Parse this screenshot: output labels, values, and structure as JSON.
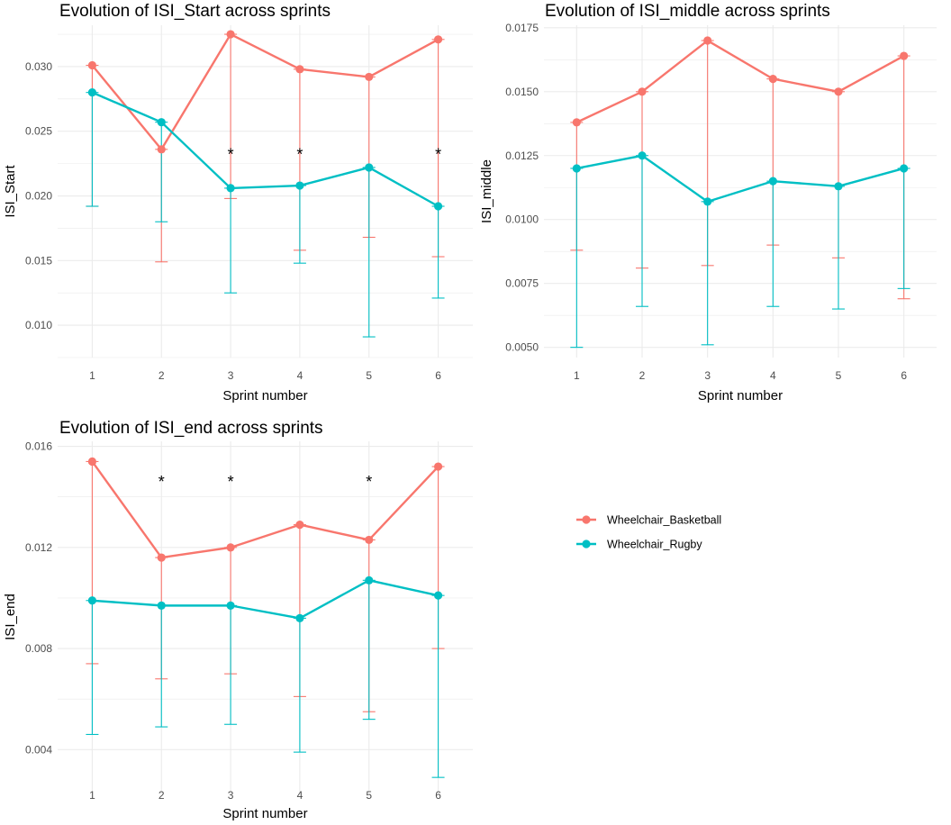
{
  "colors": {
    "basketball": "#F8766D",
    "rugby": "#00BFC4",
    "grid": "#ebebeb"
  },
  "legend": {
    "items": [
      {
        "label": "Wheelchair_Basketball",
        "color": "#F8766D"
      },
      {
        "label": "Wheelchair_Rugby",
        "color": "#00BFC4"
      }
    ]
  },
  "chart_data": [
    {
      "type": "line",
      "title": "Evolution of ISI_Start across sprints",
      "xlabel": "Sprint number",
      "ylabel": "ISI_Start",
      "x": [
        1,
        2,
        3,
        4,
        5,
        6
      ],
      "ylim": [
        0.0075,
        0.0332
      ],
      "yticks": [
        0.01,
        0.015,
        0.02,
        0.025,
        0.03
      ],
      "ytick_labels": [
        "0.010",
        "0.015",
        "0.020",
        "0.025",
        "0.030"
      ],
      "xtick_labels": [
        "1",
        "2",
        "3",
        "4",
        "5",
        "6"
      ],
      "significance": [
        3,
        4,
        6
      ],
      "significance_y": 0.0232,
      "series": [
        {
          "name": "Wheelchair_Basketball",
          "values": [
            0.0301,
            0.0236,
            0.0325,
            0.0298,
            0.0292,
            0.0321
          ],
          "err_low": [
            0.0192,
            0.0149,
            0.0198,
            0.0158,
            0.0168,
            0.0153
          ]
        },
        {
          "name": "Wheelchair_Rugby",
          "values": [
            0.028,
            0.0257,
            0.0206,
            0.0208,
            0.0222,
            0.0192
          ],
          "err_low": [
            0.0192,
            0.018,
            0.0125,
            0.0148,
            0.0091,
            0.0121
          ]
        }
      ]
    },
    {
      "type": "line",
      "title": "Evolution of ISI_middle across sprints",
      "xlabel": "Sprint number",
      "ylabel": "ISI_middle",
      "x": [
        1,
        2,
        3,
        4,
        5,
        6
      ],
      "ylim": [
        0.0046,
        0.0176
      ],
      "yticks": [
        0.005,
        0.0075,
        0.01,
        0.0125,
        0.015,
        0.0175
      ],
      "ytick_labels": [
        "0.0050",
        "0.0075",
        "0.0100",
        "0.0125",
        "0.0150",
        "0.0175"
      ],
      "xtick_labels": [
        "1",
        "2",
        "3",
        "4",
        "5",
        "6"
      ],
      "significance": [],
      "significance_y": 0,
      "series": [
        {
          "name": "Wheelchair_Basketball",
          "values": [
            0.0138,
            0.015,
            0.017,
            0.0155,
            0.015,
            0.0164
          ],
          "err_low": [
            0.0088,
            0.0081,
            0.0082,
            0.009,
            0.0085,
            0.0069
          ]
        },
        {
          "name": "Wheelchair_Rugby",
          "values": [
            0.012,
            0.0125,
            0.0107,
            0.0115,
            0.0113,
            0.012
          ],
          "err_low": [
            0.005,
            0.0066,
            0.0051,
            0.0066,
            0.0065,
            0.0073
          ]
        }
      ]
    },
    {
      "type": "line",
      "title": "Evolution of ISI_end across sprints",
      "xlabel": "Sprint number",
      "ylabel": "ISI_end",
      "x": [
        1,
        2,
        3,
        4,
        5,
        6
      ],
      "ylim": [
        0.0023,
        0.0162
      ],
      "yticks": [
        0.004,
        0.008,
        0.012,
        0.016
      ],
      "ytick_labels": [
        "0.004",
        "0.008",
        "0.012",
        "0.016"
      ],
      "xtick_labels": [
        "1",
        "2",
        "3",
        "4",
        "5",
        "6"
      ],
      "significance": [
        2,
        3,
        5
      ],
      "significance_y": 0.0146,
      "series": [
        {
          "name": "Wheelchair_Basketball",
          "values": [
            0.0154,
            0.0116,
            0.012,
            0.0129,
            0.0123,
            0.0152
          ],
          "err_low": [
            0.0074,
            0.0068,
            0.007,
            0.0061,
            0.0055,
            0.008
          ]
        },
        {
          "name": "Wheelchair_Rugby",
          "values": [
            0.0099,
            0.0097,
            0.0097,
            0.0092,
            0.0107,
            0.0101
          ],
          "err_low": [
            0.0046,
            0.0049,
            0.005,
            0.0039,
            0.0052,
            0.0029
          ]
        }
      ]
    }
  ]
}
